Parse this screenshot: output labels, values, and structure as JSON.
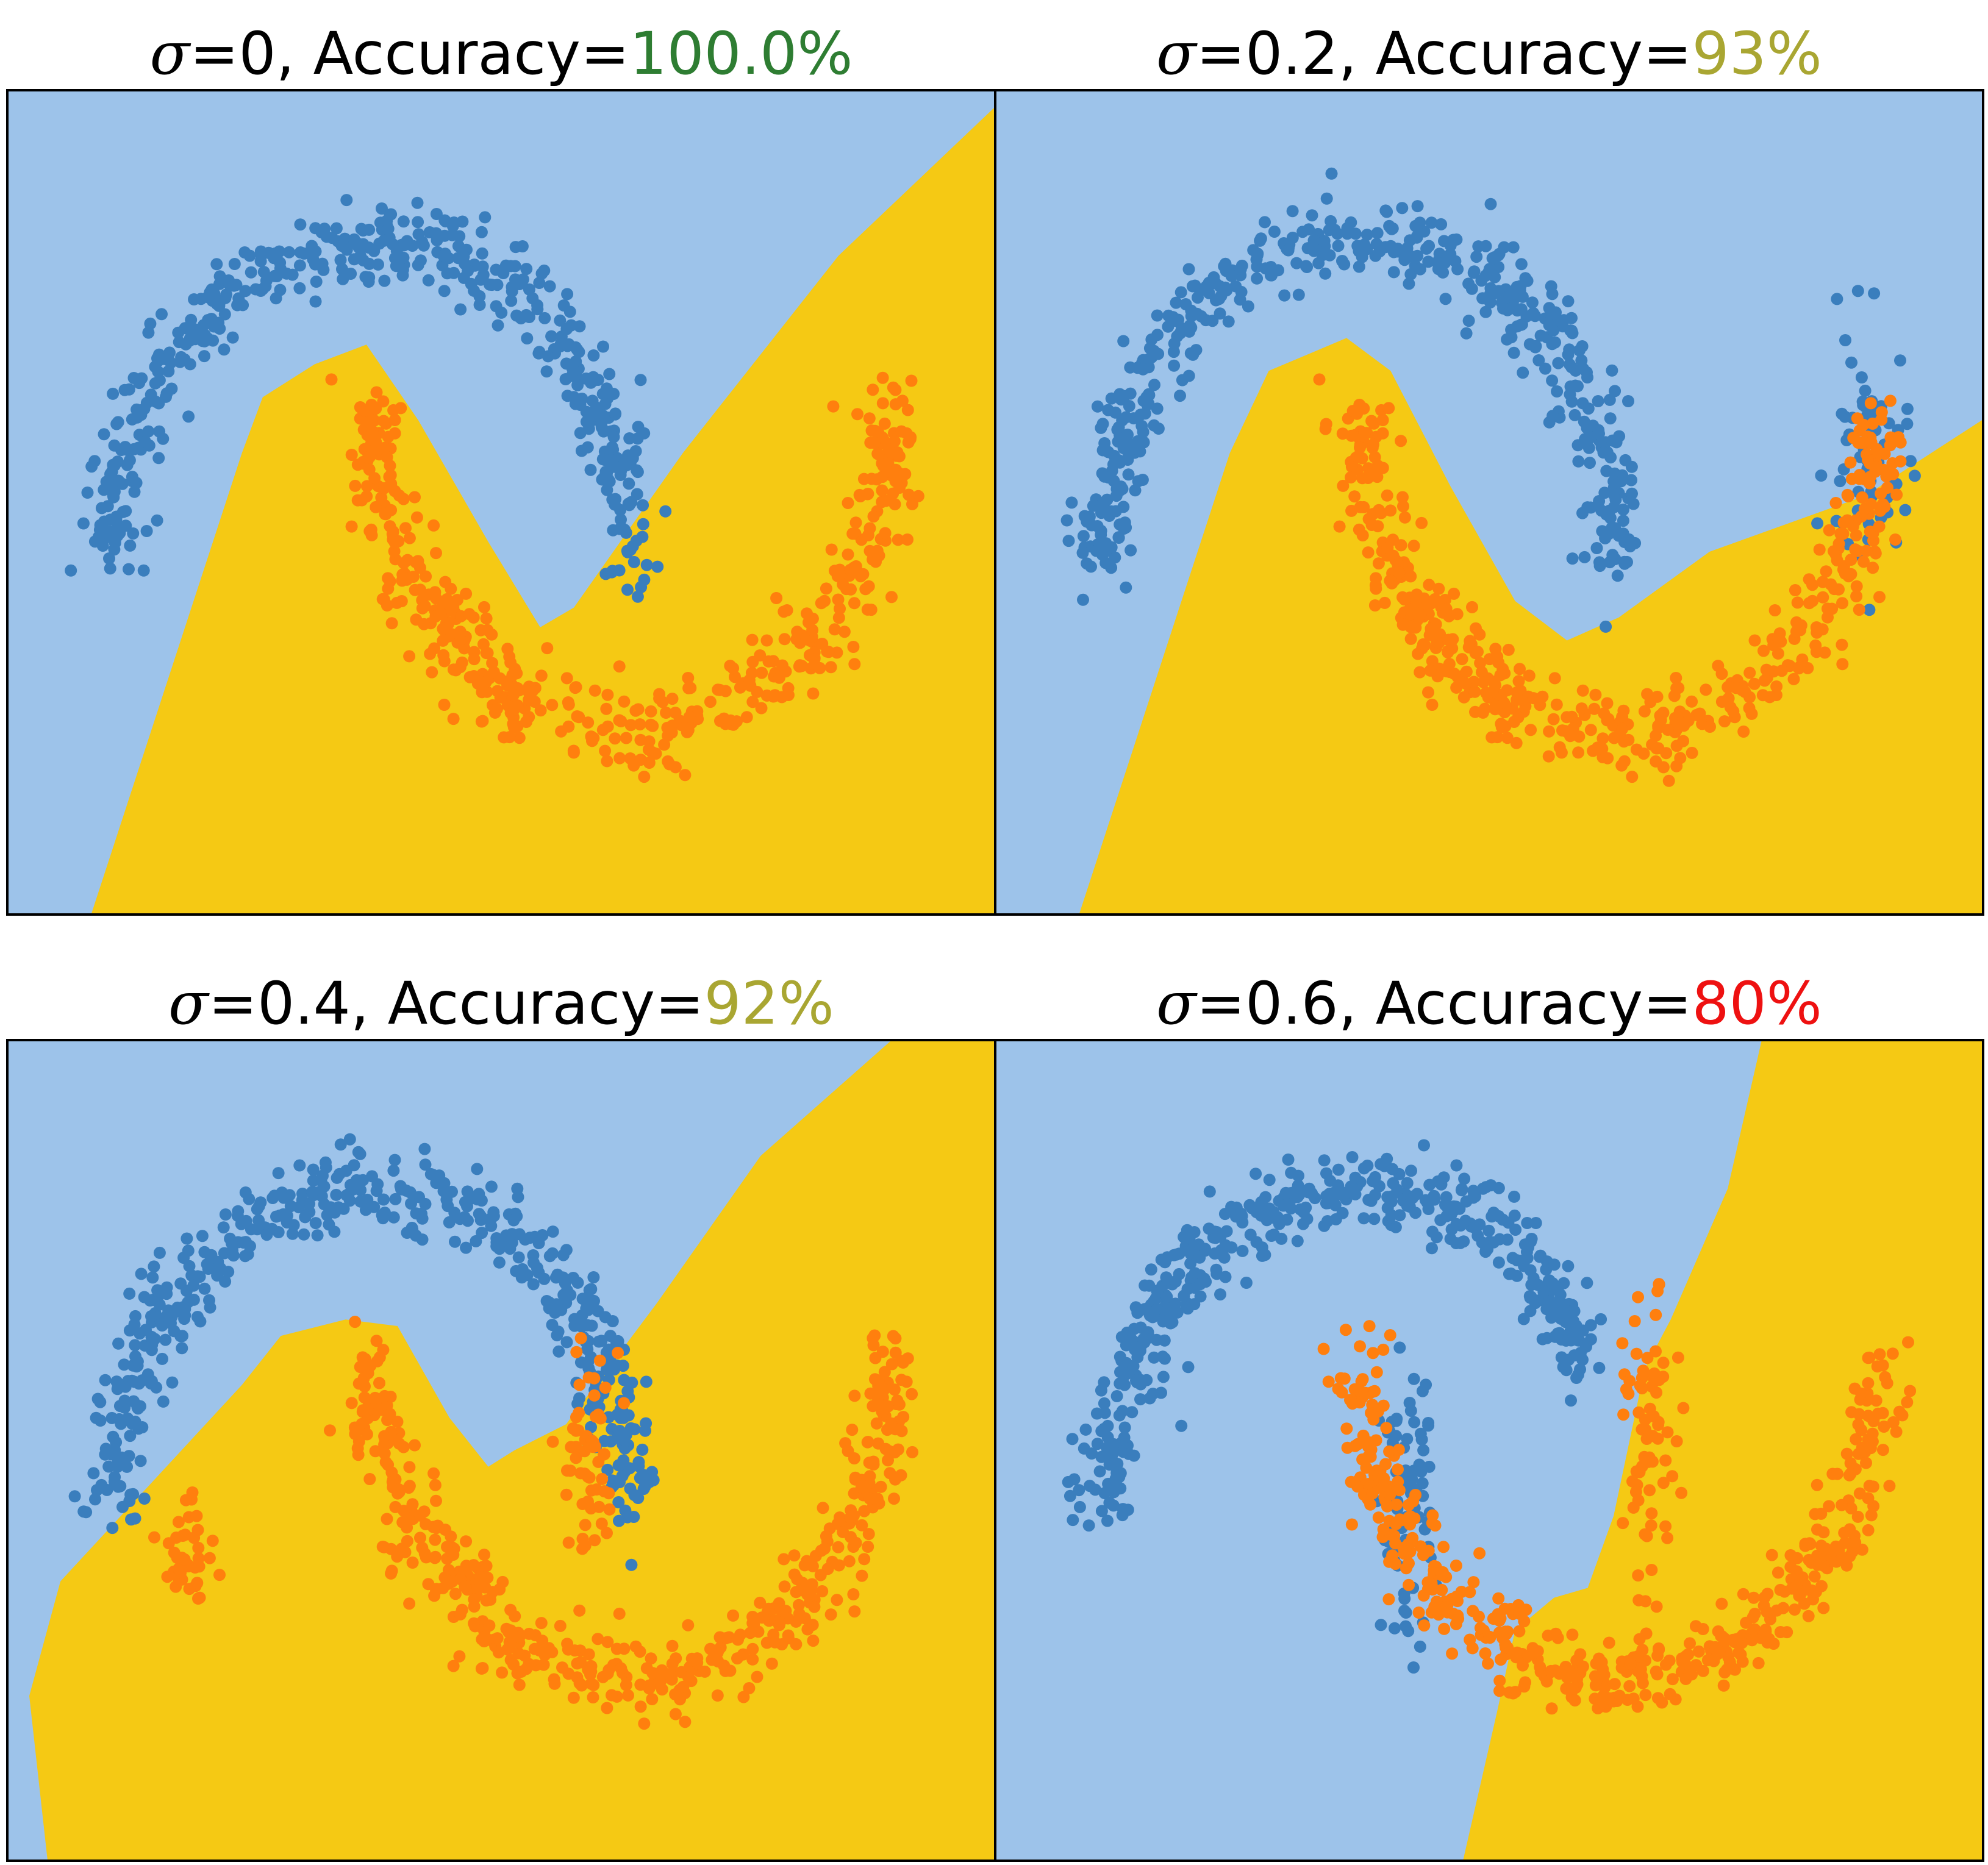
{
  "colors": {
    "region_class0": "#9dc3ea",
    "region_class1": "#f5c914",
    "points_class0": "#3a7ebd",
    "points_class1": "#ff7f0e",
    "frame": "#000000"
  },
  "chart_data": [
    {
      "type": "scatter",
      "title": {
        "symbol": "σ",
        "text": "=0, Accuracy=",
        "accuracy": "100.0%",
        "accuracy_color": "#2e7d32"
      },
      "sigma": 0,
      "accuracy_pct": 100.0,
      "xlim": [
        -1.4,
        2.4
      ],
      "ylim": [
        -1.05,
        1.45
      ],
      "axes_visible": false,
      "grid": false,
      "legend": "none",
      "series": [
        {
          "class": 0,
          "points": "upper_moon",
          "center": [
            0,
            0
          ]
        },
        {
          "class": 1,
          "points": "lower_moon",
          "center": [
            1,
            0.5
          ]
        }
      ],
      "boundary": [
        [
          -1.08,
          -1.05
        ],
        [
          -0.5,
          0.35
        ],
        [
          -0.42,
          0.52
        ],
        [
          -0.22,
          0.62
        ],
        [
          -0.02,
          0.68
        ],
        [
          0.18,
          0.45
        ],
        [
          0.45,
          0.08
        ],
        [
          0.65,
          -0.18
        ],
        [
          0.78,
          -0.12
        ],
        [
          1.2,
          0.35
        ],
        [
          1.8,
          0.95
        ],
        [
          2.4,
          1.4
        ],
        [
          2.4,
          -1.05
        ]
      ]
    },
    {
      "type": "scatter",
      "title": {
        "symbol": "σ",
        "text": "=0.2, Accuracy=",
        "accuracy": "93%",
        "accuracy_color": "#a9a632"
      },
      "sigma": 0.2,
      "accuracy_pct": 93,
      "xlim": [
        -1.4,
        2.4
      ],
      "ylim": [
        -1.05,
        1.45
      ],
      "axes_visible": false,
      "grid": false,
      "legend": "none",
      "series": [
        {
          "class": 0,
          "points": "upper_moon",
          "center": [
            0,
            0
          ]
        },
        {
          "class": 0,
          "points": "blob",
          "center": [
            1.96,
            0.32
          ],
          "count": 60,
          "spread": [
            0.08,
            0.2
          ]
        },
        {
          "class": 1,
          "points": "lower_moon",
          "center": [
            1,
            0.5
          ]
        }
      ],
      "boundary": [
        [
          -1.08,
          -1.05
        ],
        [
          -0.5,
          0.35
        ],
        [
          -0.35,
          0.6
        ],
        [
          -0.05,
          0.7
        ],
        [
          0.12,
          0.6
        ],
        [
          0.35,
          0.25
        ],
        [
          0.6,
          -0.1
        ],
        [
          0.8,
          -0.22
        ],
        [
          1.0,
          -0.15
        ],
        [
          1.35,
          0.05
        ],
        [
          1.95,
          0.22
        ],
        [
          2.4,
          0.45
        ],
        [
          2.4,
          -1.05
        ]
      ]
    },
    {
      "type": "scatter",
      "title": {
        "symbol": "σ",
        "text": "=0.4, Accuracy=",
        "accuracy": "92%",
        "accuracy_color": "#a9a632"
      },
      "sigma": 0.4,
      "accuracy_pct": 92,
      "xlim": [
        -1.4,
        2.4
      ],
      "ylim": [
        -1.05,
        1.45
      ],
      "axes_visible": false,
      "grid": false,
      "legend": "none",
      "series": [
        {
          "class": 0,
          "points": "upper_moon",
          "center": [
            0,
            0
          ]
        },
        {
          "class": 1,
          "points": "blob",
          "center": [
            -0.7,
            -0.12
          ],
          "count": 40,
          "spread": [
            0.06,
            0.1
          ]
        },
        {
          "class": 1,
          "points": "blob",
          "center": [
            0.83,
            0.18
          ],
          "count": 60,
          "spread": [
            0.05,
            0.17
          ]
        },
        {
          "class": 1,
          "points": "lower_moon",
          "center": [
            1,
            0.5
          ]
        }
      ],
      "boundary": [
        [
          -1.25,
          -1.05
        ],
        [
          -1.32,
          -0.55
        ],
        [
          -1.2,
          -0.2
        ],
        [
          -0.85,
          0.1
        ],
        [
          -0.5,
          0.4
        ],
        [
          -0.35,
          0.55
        ],
        [
          -0.1,
          0.6
        ],
        [
          0.1,
          0.58
        ],
        [
          0.3,
          0.3
        ],
        [
          0.45,
          0.15
        ],
        [
          0.55,
          0.2
        ],
        [
          0.75,
          0.28
        ],
        [
          1.1,
          0.65
        ],
        [
          1.5,
          1.1
        ],
        [
          2.0,
          1.45
        ],
        [
          2.4,
          1.45
        ],
        [
          2.4,
          -1.05
        ]
      ]
    },
    {
      "type": "scatter",
      "title": {
        "symbol": "σ",
        "text": "=0.6, Accuracy=",
        "accuracy": "80%",
        "accuracy_color": "#ee1111"
      },
      "sigma": 0.6,
      "accuracy_pct": 80,
      "xlim": [
        -1.4,
        2.4
      ],
      "ylim": [
        -1.05,
        1.45
      ],
      "axes_visible": false,
      "grid": false,
      "legend": "none",
      "series": [
        {
          "class": 0,
          "points": "upper_moon_head",
          "center": [
            0,
            0
          ]
        },
        {
          "class": 0,
          "points": "blob",
          "center": [
            0.18,
            0.02
          ],
          "count": 80,
          "spread": [
            0.05,
            0.2
          ]
        },
        {
          "class": 1,
          "points": "blob",
          "center": [
            1.12,
            0.22
          ],
          "count": 70,
          "spread": [
            0.05,
            0.22
          ]
        },
        {
          "class": 1,
          "points": "lower_moon",
          "center": [
            1,
            0.5
          ]
        }
      ],
      "boundary": [
        [
          0.4,
          -1.05
        ],
        [
          0.53,
          -0.6
        ],
        [
          0.6,
          -0.35
        ],
        [
          0.75,
          -0.25
        ],
        [
          0.88,
          -0.22
        ],
        [
          0.98,
          0.0
        ],
        [
          1.1,
          0.45
        ],
        [
          1.2,
          0.6
        ],
        [
          1.42,
          1.0
        ],
        [
          1.55,
          1.45
        ],
        [
          2.4,
          1.45
        ],
        [
          2.4,
          -1.05
        ]
      ]
    }
  ]
}
